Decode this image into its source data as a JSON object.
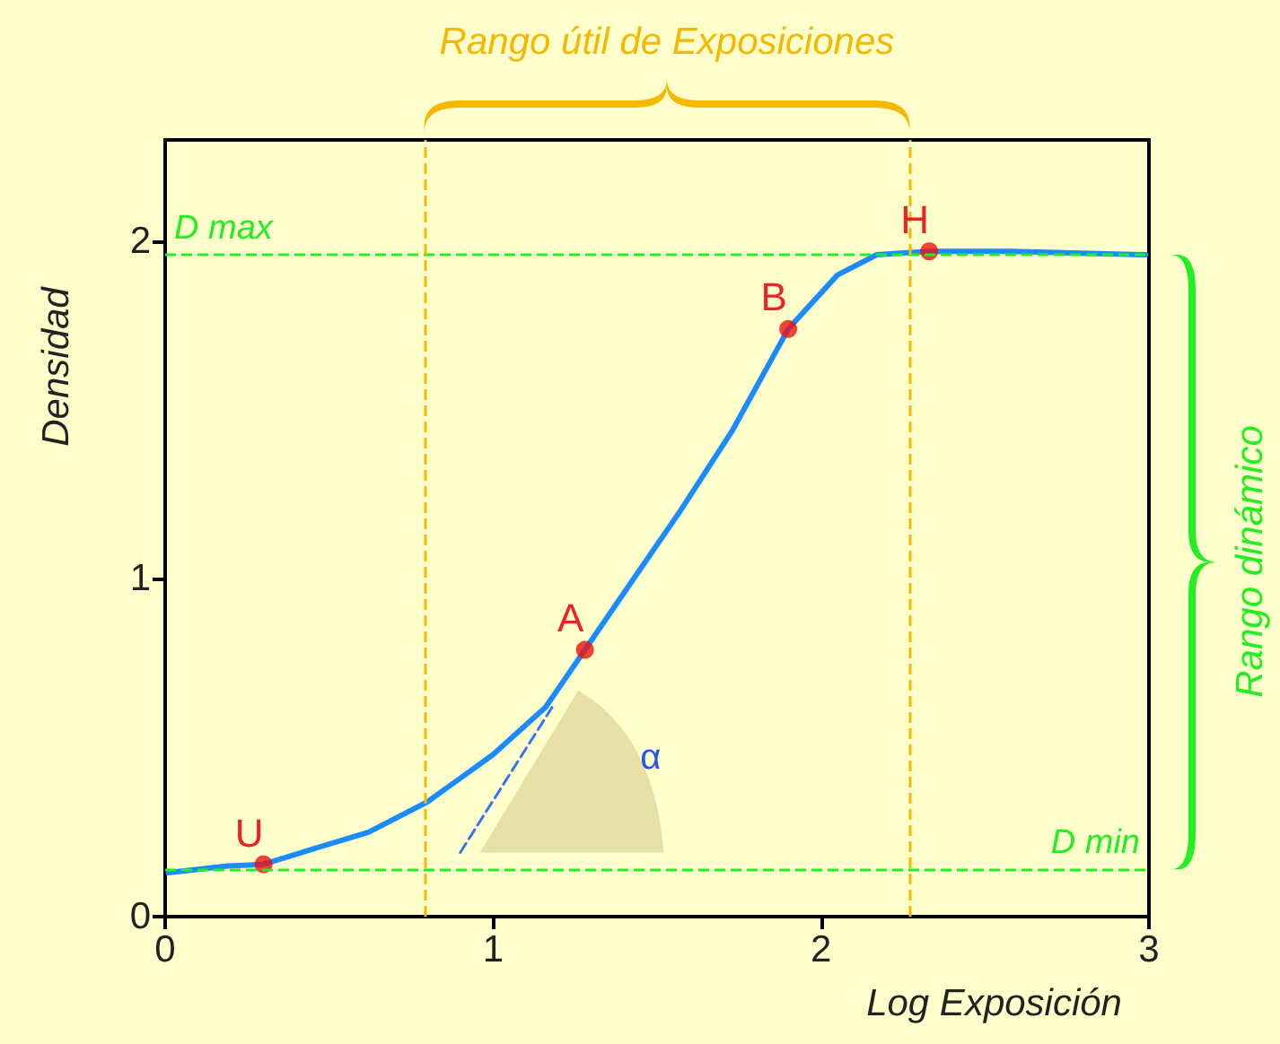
{
  "chart_data": {
    "type": "line",
    "xlabel": "Log Exposición",
    "ylabel": "Densidad",
    "xlim": [
      0,
      3
    ],
    "xticks": [
      0,
      1,
      2,
      3
    ],
    "ylim": [
      0,
      2.3
    ],
    "yticks": [
      0,
      1,
      2
    ],
    "grid": false,
    "marker": "none",
    "line_style": "solid",
    "series": [
      {
        "color": "#1a8cff",
        "x": [
          0.01,
          0.19,
          0.3,
          0.45,
          0.62,
          0.8,
          1.0,
          1.16,
          1.28,
          1.4,
          1.57,
          1.73,
          1.9,
          2.05,
          2.17,
          2.33,
          2.58,
          2.99
        ],
        "values": [
          0.13,
          0.15,
          0.155,
          0.2,
          0.25,
          0.34,
          0.48,
          0.62,
          0.79,
          0.96,
          1.2,
          1.44,
          1.74,
          1.9,
          1.96,
          1.97,
          1.97,
          1.96
        ]
      },
      {
        "type": "line",
        "color": "#3377ee",
        "line_style": "dashed",
        "x": [
          0.9,
          1.18
        ],
        "values": [
          0.19,
          0.62
        ]
      },
      {
        "type": "scatter",
        "color": "#ee1111",
        "marker": "circle",
        "x": [
          0.3,
          1.28,
          1.9,
          2.33
        ],
        "values": [
          0.155,
          0.79,
          1.74,
          1.97
        ]
      }
    ],
    "ref_lines": [
      {
        "axis": "y",
        "value": 1.96,
        "label": "D max",
        "color": "#22ee22",
        "line_style": "dashed"
      },
      {
        "axis": "y",
        "value": 0.14,
        "label": "D min",
        "color": "#22ee22",
        "line_style": "dashed"
      },
      {
        "axis": "x",
        "value": 0.79,
        "label": null,
        "color": "#f5b800",
        "line_style": "dashed"
      },
      {
        "axis": "x",
        "value": 2.27,
        "label": null,
        "color": "#f5b800",
        "line_style": "dashed"
      }
    ],
    "annotations": [
      "Rango útil de Exposiciones",
      "Rango dinámico",
      {
        "text": "U",
        "x": 0.3,
        "y": 0.155
      },
      {
        "text": "A",
        "x": 1.28,
        "y": 0.79
      },
      {
        "text": "B",
        "x": 1.9,
        "y": 1.74
      },
      {
        "text": "H",
        "x": 2.33,
        "y": 1.97
      },
      "α"
    ]
  }
}
